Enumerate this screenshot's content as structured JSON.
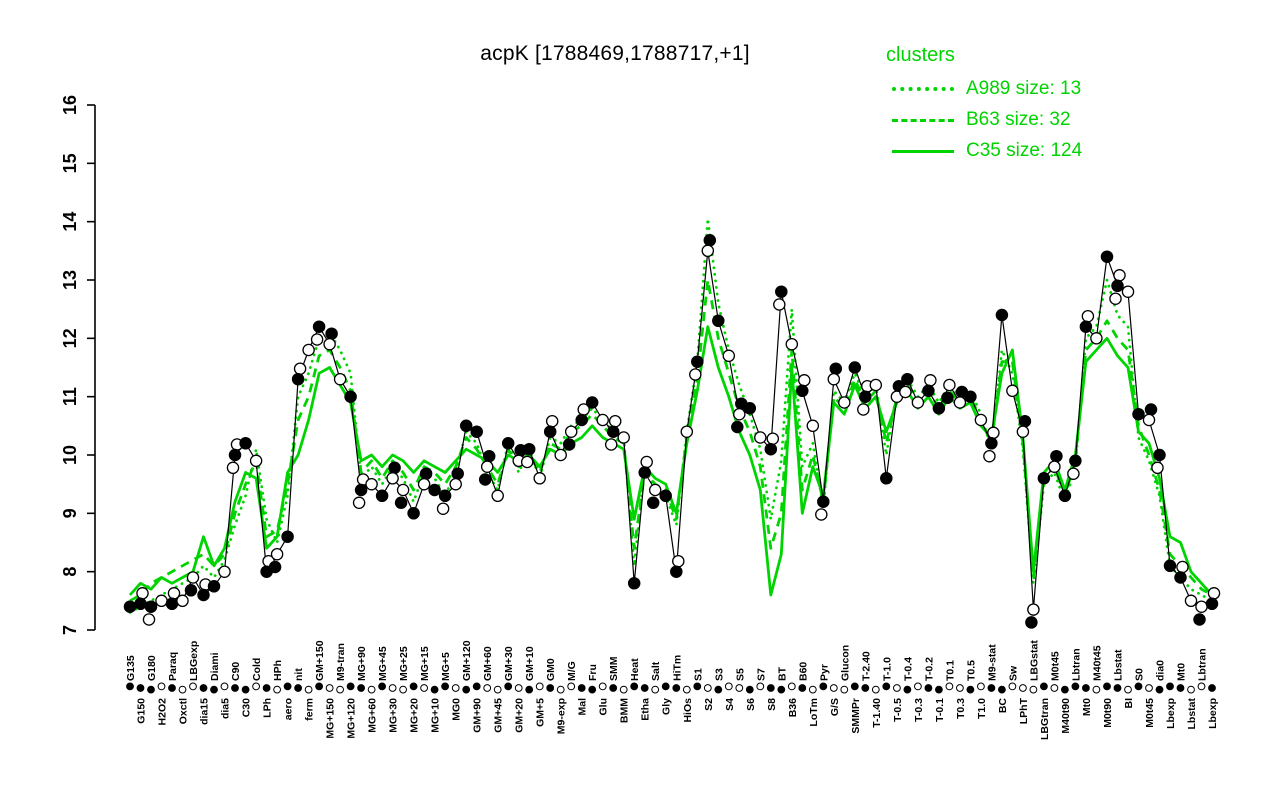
{
  "title": "acpK [1788469,1788717,+1]",
  "legend": {
    "title": "clusters",
    "items": [
      {
        "label": "A989 size: 13",
        "style": "dotted"
      },
      {
        "label": "B63 size: 32",
        "style": "dashed"
      },
      {
        "label": "C35 size: 124",
        "style": "solid"
      }
    ]
  },
  "colors": {
    "cluster_green": "#00d400",
    "line_black": "#000000",
    "point_filled": "#000000",
    "point_open": "#ffffff"
  },
  "chart_data": {
    "type": "line",
    "title": "acpK [1788469,1788717,+1]",
    "ylim": [
      7,
      16
    ],
    "yticks": [
      7,
      8,
      9,
      10,
      11,
      12,
      13,
      14,
      15,
      16
    ],
    "legend_position": "top-right",
    "grid": false,
    "categories": [
      "G135",
      "G150",
      "G180",
      "H2O2",
      "Paraq",
      "Oxctl",
      "LBGexp",
      "dia15",
      "Diami",
      "dia5",
      "C90",
      "C30",
      "Cold",
      "LPh",
      "HPh",
      "aero",
      "nit",
      "ferm",
      "GM+150",
      "MG+150",
      "M9-tran",
      "MG+120",
      "MG+90",
      "MG+60",
      "MG+45",
      "MG+30",
      "MG+25",
      "MG+20",
      "MG+15",
      "MG+10",
      "MG+5",
      "MG0",
      "GM+120",
      "GM+90",
      "GM+60",
      "GM+45",
      "GM+30",
      "GM+20",
      "GM+10",
      "GM+5",
      "GM0",
      "M9-exp",
      "M/G",
      "Mal",
      "Fru",
      "Glu",
      "SMM",
      "BMM",
      "Heat",
      "Etha",
      "Salt",
      "Gly",
      "HiTm",
      "HiOs",
      "S1",
      "S2",
      "S3",
      "S4",
      "S5",
      "S6",
      "S7",
      "S8",
      "BT",
      "B36",
      "B60",
      "LoTm",
      "Pyr",
      "G/S",
      "Glucon",
      "SMMPr",
      "T-2.40",
      "T-1.40",
      "T-1.0",
      "T-0.5",
      "T-0.4",
      "T-0.3",
      "T-0.2",
      "T-0.1",
      "T0.1",
      "T0.3",
      "T0.5",
      "T1.0",
      "M9-stat",
      "BC",
      "Sw",
      "LPhT",
      "LBGstat",
      "LBGtran",
      "M0t45",
      "M40t90",
      "Lbtran",
      "Mt0",
      "M40t45",
      "M0t90",
      "Lbstat",
      "BI",
      "S0",
      "M0t45",
      "dia0",
      "Lbexp",
      "Mt0",
      "Lbstat",
      "Lbtran",
      "Lbexp"
    ],
    "point_fills": [
      1,
      1,
      1,
      0,
      1,
      0,
      0,
      1,
      1,
      0,
      1,
      1,
      0,
      1,
      0,
      1,
      1,
      0,
      1,
      0,
      0,
      1,
      1,
      0,
      1,
      0,
      0,
      1,
      0,
      1,
      1,
      0,
      1,
      1,
      0,
      0,
      1,
      0,
      1,
      0,
      1,
      0,
      0,
      1,
      1,
      0,
      1,
      0,
      1,
      1,
      0,
      1,
      1,
      0,
      1,
      0,
      1,
      0,
      0,
      1,
      0,
      1,
      1,
      0,
      1,
      0,
      1,
      0,
      0,
      1,
      1,
      0,
      1,
      0,
      1,
      0,
      1,
      1,
      0,
      0,
      1,
      0,
      1,
      1,
      0,
      0,
      0,
      1,
      0,
      1,
      1,
      1,
      0,
      1,
      1,
      0,
      1,
      0,
      1,
      1,
      1,
      0,
      0,
      1
    ],
    "series": [
      {
        "name": "gene expression points",
        "color": "#000000",
        "style": "points+line",
        "values": [
          7.4,
          7.45,
          7.4,
          7.5,
          7.45,
          7.5,
          7.9,
          7.6,
          7.75,
          8.0,
          10.0,
          10.2,
          9.9,
          8.0,
          8.3,
          8.6,
          11.3,
          11.8,
          12.2,
          11.9,
          11.3,
          11.0,
          9.4,
          9.5,
          9.3,
          9.6,
          9.4,
          9.0,
          9.5,
          9.4,
          9.3,
          9.5,
          10.5,
          10.4,
          9.8,
          9.3,
          10.2,
          9.9,
          10.1,
          9.6,
          10.4,
          10.0,
          10.4,
          10.6,
          10.9,
          10.6,
          10.4,
          10.3,
          7.8,
          9.7,
          9.4,
          9.3,
          8.0,
          10.4,
          11.6,
          13.5,
          12.3,
          11.7,
          10.7,
          10.8,
          10.3,
          10.1,
          12.8,
          11.9,
          11.1,
          10.5,
          9.2,
          11.3,
          10.9,
          11.5,
          11.0,
          11.2,
          9.6,
          11.0,
          11.3,
          10.9,
          11.1,
          10.8,
          11.2,
          10.9,
          11.0,
          10.6,
          10.2,
          12.4,
          11.1,
          10.4,
          7.35,
          9.6,
          9.8,
          9.3,
          9.9,
          12.2,
          12.0,
          13.4,
          12.9,
          12.8,
          10.7,
          10.6,
          10.0,
          8.1,
          7.9,
          7.5,
          7.4,
          7.45
        ]
      },
      {
        "name": "A989",
        "color": "#00d400",
        "style": "dotted",
        "values": [
          7.3,
          7.4,
          7.5,
          7.6,
          7.7,
          7.8,
          7.9,
          8.1,
          7.9,
          8.2,
          8.8,
          9.3,
          10.1,
          8.9,
          8.5,
          9.3,
          11.0,
          11.4,
          12.0,
          12.1,
          11.8,
          11.4,
          9.6,
          9.8,
          9.5,
          9.8,
          9.6,
          9.2,
          9.7,
          9.6,
          9.3,
          9.7,
          10.4,
          10.2,
          9.7,
          9.4,
          10.2,
          9.7,
          10.1,
          9.6,
          10.3,
          10.2,
          10.5,
          10.6,
          10.8,
          10.6,
          10.4,
          10.3,
          8.1,
          9.8,
          9.4,
          9.3,
          8.8,
          10.4,
          11.6,
          14.05,
          12.6,
          11.8,
          11.2,
          10.7,
          10.1,
          8.9,
          9.9,
          12.5,
          9.8,
          10.2,
          9.1,
          11.1,
          10.9,
          11.4,
          11.0,
          11.2,
          10.0,
          11.1,
          11.3,
          11.0,
          11.2,
          10.9,
          11.2,
          11.0,
          11.1,
          10.7,
          10.1,
          11.8,
          11.4,
          10.1,
          7.8,
          9.5,
          9.7,
          9.2,
          9.8,
          12.0,
          12.2,
          13.0,
          12.4,
          12.2,
          10.3,
          9.9,
          9.3,
          8.1,
          7.9,
          7.7,
          7.6,
          7.5
        ]
      },
      {
        "name": "B63",
        "color": "#00d400",
        "style": "dashed",
        "values": [
          7.5,
          7.6,
          7.8,
          7.9,
          8.0,
          8.1,
          8.2,
          8.3,
          8.1,
          8.3,
          9.0,
          9.5,
          9.9,
          8.6,
          8.7,
          9.5,
          10.6,
          11.0,
          11.7,
          11.8,
          11.5,
          11.1,
          9.7,
          9.9,
          9.6,
          9.9,
          9.7,
          9.4,
          9.8,
          9.7,
          9.5,
          9.8,
          10.3,
          10.1,
          9.8,
          9.5,
          10.1,
          9.8,
          10.0,
          9.7,
          10.2,
          10.1,
          10.4,
          10.5,
          10.7,
          10.5,
          10.3,
          10.2,
          8.4,
          9.7,
          9.5,
          9.4,
          8.9,
          10.3,
          11.3,
          13.0,
          12.0,
          11.4,
          10.8,
          10.4,
          9.8,
          8.4,
          9.0,
          11.8,
          9.4,
          10.0,
          9.2,
          11.0,
          10.8,
          11.3,
          10.9,
          11.1,
          10.2,
          11.0,
          11.2,
          10.9,
          11.1,
          10.8,
          11.1,
          10.9,
          11.0,
          10.6,
          10.2,
          11.6,
          11.6,
          10.2,
          7.9,
          9.6,
          9.8,
          9.3,
          9.9,
          11.8,
          12.0,
          12.3,
          12.0,
          11.8,
          10.5,
          10.0,
          9.4,
          8.3,
          8.1,
          7.9,
          7.7,
          7.6
        ]
      },
      {
        "name": "C35",
        "color": "#00d400",
        "style": "solid",
        "values": [
          7.6,
          7.8,
          7.7,
          7.9,
          7.8,
          7.9,
          8.0,
          8.6,
          8.1,
          8.4,
          9.2,
          9.7,
          9.6,
          8.4,
          8.6,
          9.7,
          10.0,
          10.6,
          11.4,
          11.5,
          11.2,
          10.9,
          9.9,
          10.0,
          9.8,
          10.0,
          9.9,
          9.7,
          9.9,
          9.8,
          9.7,
          9.9,
          10.1,
          10.0,
          9.9,
          9.7,
          10.0,
          9.9,
          10.0,
          9.8,
          10.1,
          10.0,
          10.2,
          10.3,
          10.5,
          10.3,
          10.2,
          10.1,
          8.9,
          9.8,
          9.6,
          9.5,
          9.0,
          10.2,
          11.1,
          12.2,
          11.5,
          11.0,
          10.4,
          10.0,
          9.4,
          7.6,
          8.3,
          11.5,
          9.0,
          9.8,
          9.3,
          10.9,
          10.7,
          11.2,
          10.8,
          11.0,
          10.4,
          10.9,
          11.1,
          10.8,
          11.0,
          10.7,
          11.0,
          10.8,
          10.9,
          10.5,
          10.3,
          11.4,
          11.8,
          10.3,
          8.0,
          9.7,
          9.9,
          9.4,
          10.0,
          11.6,
          11.8,
          12.0,
          11.7,
          11.5,
          10.4,
          10.2,
          9.6,
          8.6,
          8.5,
          8.0,
          7.8,
          7.6
        ]
      }
    ]
  }
}
